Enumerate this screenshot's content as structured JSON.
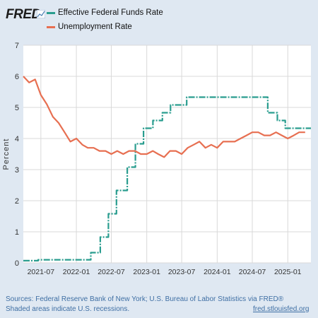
{
  "header": {
    "logo_text": "FRED",
    "legend": [
      {
        "name": "Effective Federal Funds Rate",
        "color": "#2a9d8f"
      },
      {
        "name": "Unemployment Rate",
        "color": "#e76f51"
      }
    ]
  },
  "footer": {
    "sources": "Sources: Federal Reserve Bank of New York; U.S. Bureau of Labor Statistics via FRED®",
    "shaded": "Shaded areas indicate U.S. recessions.",
    "site": "fred.stlouisfed.org"
  },
  "chart_data": {
    "type": "line",
    "ylabel": "Percent",
    "ylim": [
      0,
      7
    ],
    "yticks": [
      0,
      1,
      2,
      3,
      4,
      5,
      6,
      7
    ],
    "xrange": [
      "2021-04-01",
      "2025-05-01"
    ],
    "xticks": [
      "2021-07",
      "2022-01",
      "2022-07",
      "2023-01",
      "2023-07",
      "2024-01",
      "2024-07",
      "2025-01"
    ],
    "grid": true,
    "legend_position": "top",
    "series": [
      {
        "name": "Effective Federal Funds Rate",
        "color": "#2a9d8f",
        "dashed": true,
        "step": true,
        "points": [
          [
            "2021-04-01",
            0.07
          ],
          [
            "2021-06-17",
            0.1
          ],
          [
            "2022-03-17",
            0.33
          ],
          [
            "2022-05-05",
            0.83
          ],
          [
            "2022-06-16",
            1.58
          ],
          [
            "2022-07-28",
            2.33
          ],
          [
            "2022-09-22",
            3.08
          ],
          [
            "2022-11-03",
            3.83
          ],
          [
            "2022-12-15",
            4.33
          ],
          [
            "2023-02-02",
            4.58
          ],
          [
            "2023-03-23",
            4.83
          ],
          [
            "2023-05-04",
            5.08
          ],
          [
            "2023-07-27",
            5.33
          ],
          [
            "2024-09-19",
            4.83
          ],
          [
            "2024-11-08",
            4.58
          ],
          [
            "2024-12-19",
            4.33
          ],
          [
            "2025-05-01",
            4.33
          ]
        ]
      },
      {
        "name": "Unemployment Rate",
        "color": "#e76f51",
        "dashed": false,
        "step": false,
        "points": [
          [
            "2021-04-01",
            6.0
          ],
          [
            "2021-05-01",
            5.8
          ],
          [
            "2021-06-01",
            5.9
          ],
          [
            "2021-07-01",
            5.4
          ],
          [
            "2021-08-01",
            5.1
          ],
          [
            "2021-09-01",
            4.7
          ],
          [
            "2021-10-01",
            4.5
          ],
          [
            "2021-11-01",
            4.2
          ],
          [
            "2021-12-01",
            3.9
          ],
          [
            "2022-01-01",
            4.0
          ],
          [
            "2022-02-01",
            3.8
          ],
          [
            "2022-03-01",
            3.7
          ],
          [
            "2022-04-01",
            3.7
          ],
          [
            "2022-05-01",
            3.6
          ],
          [
            "2022-06-01",
            3.6
          ],
          [
            "2022-07-01",
            3.5
          ],
          [
            "2022-08-01",
            3.6
          ],
          [
            "2022-09-01",
            3.5
          ],
          [
            "2022-10-01",
            3.6
          ],
          [
            "2022-11-01",
            3.6
          ],
          [
            "2022-12-01",
            3.5
          ],
          [
            "2023-01-01",
            3.5
          ],
          [
            "2023-02-01",
            3.6
          ],
          [
            "2023-03-01",
            3.5
          ],
          [
            "2023-04-01",
            3.4
          ],
          [
            "2023-05-01",
            3.6
          ],
          [
            "2023-06-01",
            3.6
          ],
          [
            "2023-07-01",
            3.5
          ],
          [
            "2023-08-01",
            3.7
          ],
          [
            "2023-09-01",
            3.8
          ],
          [
            "2023-10-01",
            3.9
          ],
          [
            "2023-11-01",
            3.7
          ],
          [
            "2023-12-01",
            3.8
          ],
          [
            "2024-01-01",
            3.7
          ],
          [
            "2024-02-01",
            3.9
          ],
          [
            "2024-03-01",
            3.9
          ],
          [
            "2024-04-01",
            3.9
          ],
          [
            "2024-05-01",
            4.0
          ],
          [
            "2024-06-01",
            4.1
          ],
          [
            "2024-07-01",
            4.2
          ],
          [
            "2024-08-01",
            4.2
          ],
          [
            "2024-09-01",
            4.1
          ],
          [
            "2024-10-01",
            4.1
          ],
          [
            "2024-11-01",
            4.2
          ],
          [
            "2024-12-01",
            4.1
          ],
          [
            "2025-01-01",
            4.0
          ],
          [
            "2025-02-01",
            4.1
          ],
          [
            "2025-03-01",
            4.2
          ],
          [
            "2025-04-01",
            4.2
          ]
        ]
      }
    ]
  }
}
